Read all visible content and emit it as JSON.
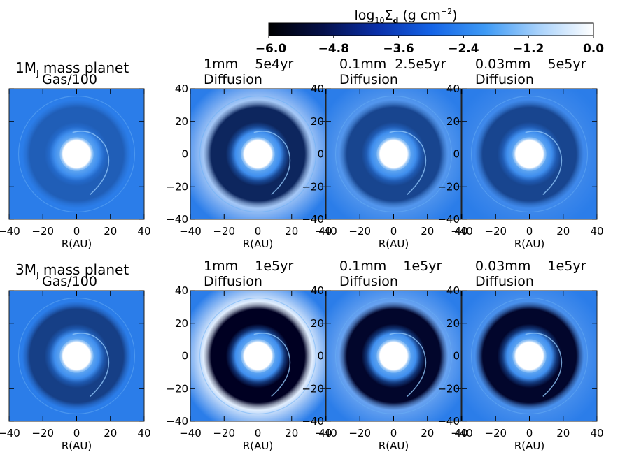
{
  "colorbar": {
    "title_prefix": "log",
    "title_sub": "10",
    "title_sigma": "Σ",
    "title_sigma_sub": "d",
    "title_units": " (g cm",
    "title_exp": "−2",
    "title_close": ")",
    "range": [
      -6.0,
      0.0
    ],
    "ticks": [
      "−6.0",
      "−4.8",
      "−3.6",
      "−2.4",
      "−1.2",
      "0.0"
    ],
    "colors": [
      "#000000",
      "#05104a",
      "#0a2fa8",
      "#1463e6",
      "#3e9af5",
      "#a9d2fb",
      "#ffffff"
    ]
  },
  "rows": [
    {
      "label_main": "1M",
      "label_sub": "J",
      "label_rest": " mass planet",
      "panels": [
        {
          "line1": "Gas/100",
          "line2": "",
          "gap_depth": 0.25,
          "gap_outer_bright": 0.0
        },
        {
          "line1": "1mm    5e4yr",
          "line2": "Diffusion",
          "gap_depth": 0.7,
          "gap_outer_bright": 0.6
        },
        {
          "line1": "0.1mm  2.5e5yr",
          "line2": "Diffusion",
          "gap_depth": 0.45,
          "gap_outer_bright": 0.2
        },
        {
          "line1": "0.03mm    5e5yr",
          "line2": "Diffusion",
          "gap_depth": 0.45,
          "gap_outer_bright": 0.1
        }
      ]
    },
    {
      "label_main": "3M",
      "label_sub": "J",
      "label_rest": " mass planet",
      "panels": [
        {
          "line1": "Gas/100",
          "line2": "",
          "gap_depth": 0.5,
          "gap_outer_bright": 0.0
        },
        {
          "line1": "1mm    1e5yr",
          "line2": "Diffusion",
          "gap_depth": 1.0,
          "gap_outer_bright": 0.9
        },
        {
          "line1": "0.1mm    1e5yr",
          "line2": "Diffusion",
          "gap_depth": 0.95,
          "gap_outer_bright": 0.3
        },
        {
          "line1": "0.03mm    1e5yr",
          "line2": "Diffusion",
          "gap_depth": 0.95,
          "gap_outer_bright": 0.15
        }
      ]
    }
  ],
  "axis": {
    "xlabel": "R(AU)",
    "ticks": [
      -40,
      -20,
      0,
      20,
      40
    ],
    "range": [
      -40,
      40
    ]
  }
}
